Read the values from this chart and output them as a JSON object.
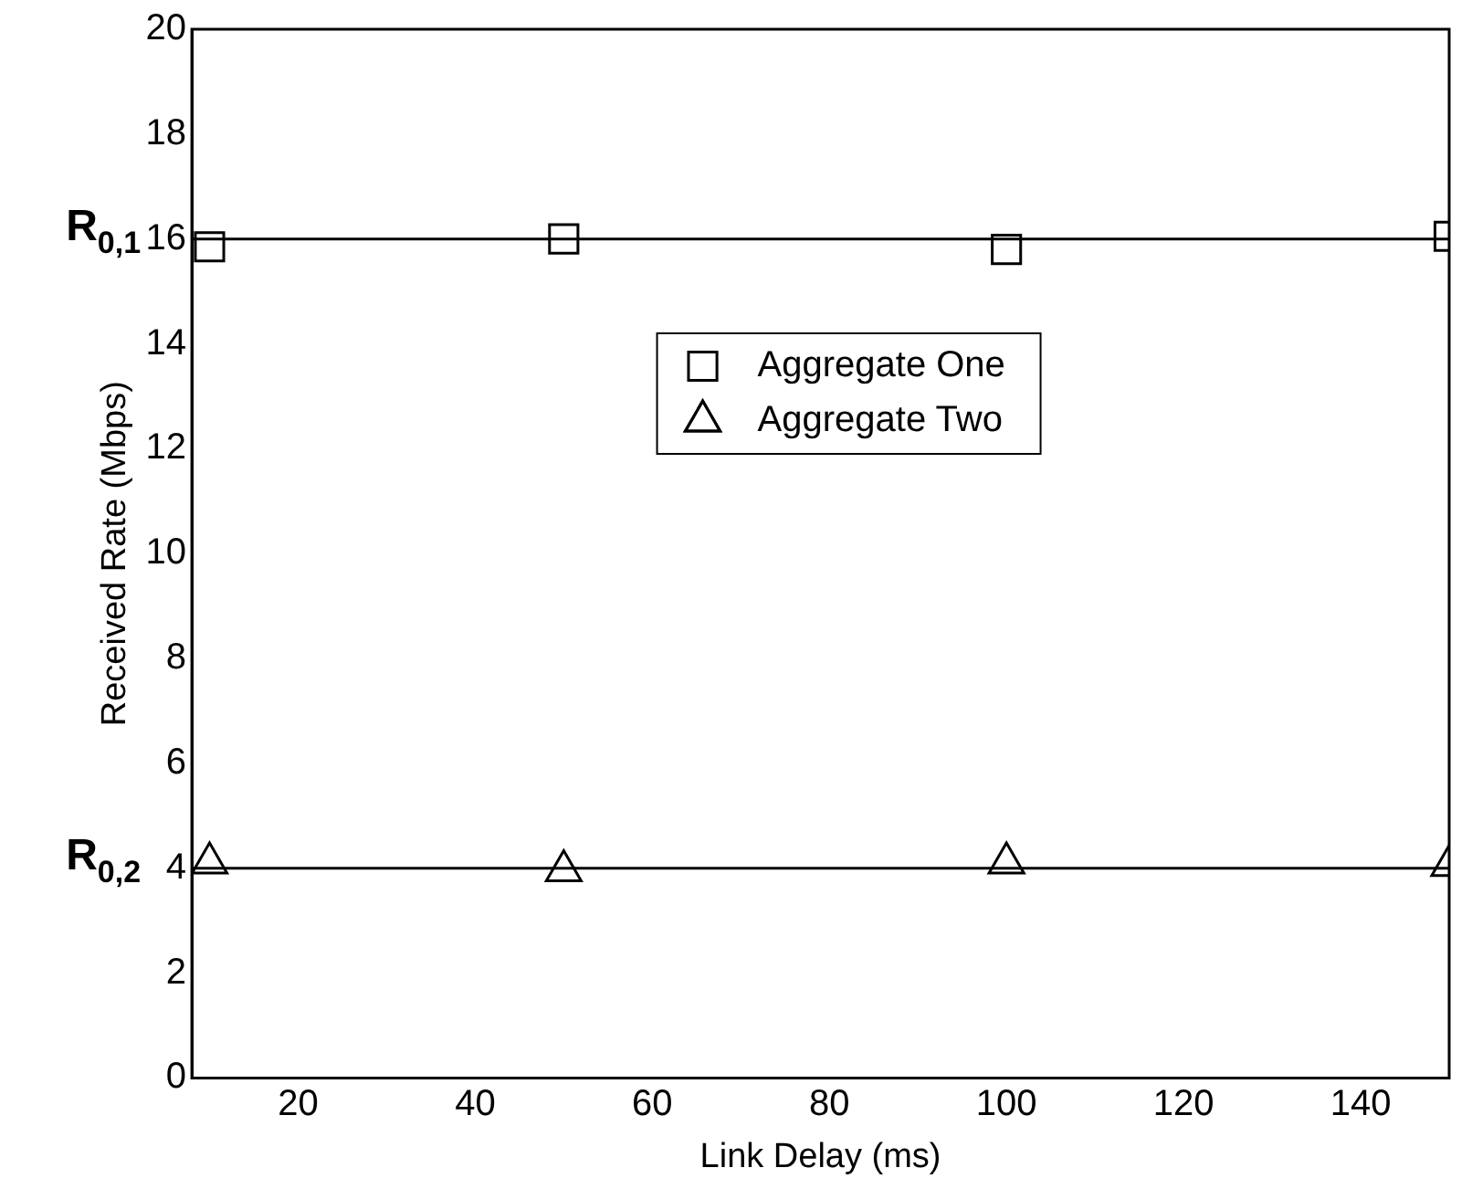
{
  "chart_data": {
    "type": "scatter",
    "xlabel": "Link Delay (ms)",
    "ylabel": "Received Rate (Mbps)",
    "x": [
      10,
      50,
      100,
      150
    ],
    "series": [
      {
        "name": "Aggregate One",
        "color": "#000000",
        "marker": "square",
        "values": [
          15.85,
          16.0,
          15.8,
          16.05
        ]
      },
      {
        "name": "Aggregate Two",
        "color": "#000000",
        "marker": "triangle",
        "values": [
          4.1,
          3.95,
          4.1,
          4.05
        ]
      }
    ],
    "xlim": [
      8,
      150
    ],
    "xticks": [
      20,
      40,
      60,
      80,
      100,
      120,
      140
    ],
    "ylim": [
      0,
      20
    ],
    "yticks": [
      0,
      2,
      4,
      6,
      8,
      10,
      12,
      14,
      16,
      18,
      20
    ],
    "ref_lines": [
      {
        "axis": "y",
        "value": 16,
        "label": "R$_{0,1}$",
        "color": "#000000"
      },
      {
        "axis": "y",
        "value": 4,
        "label": "R$_{0,2}$",
        "color": "#000000"
      }
    ],
    "grid": false,
    "legend": "center"
  }
}
